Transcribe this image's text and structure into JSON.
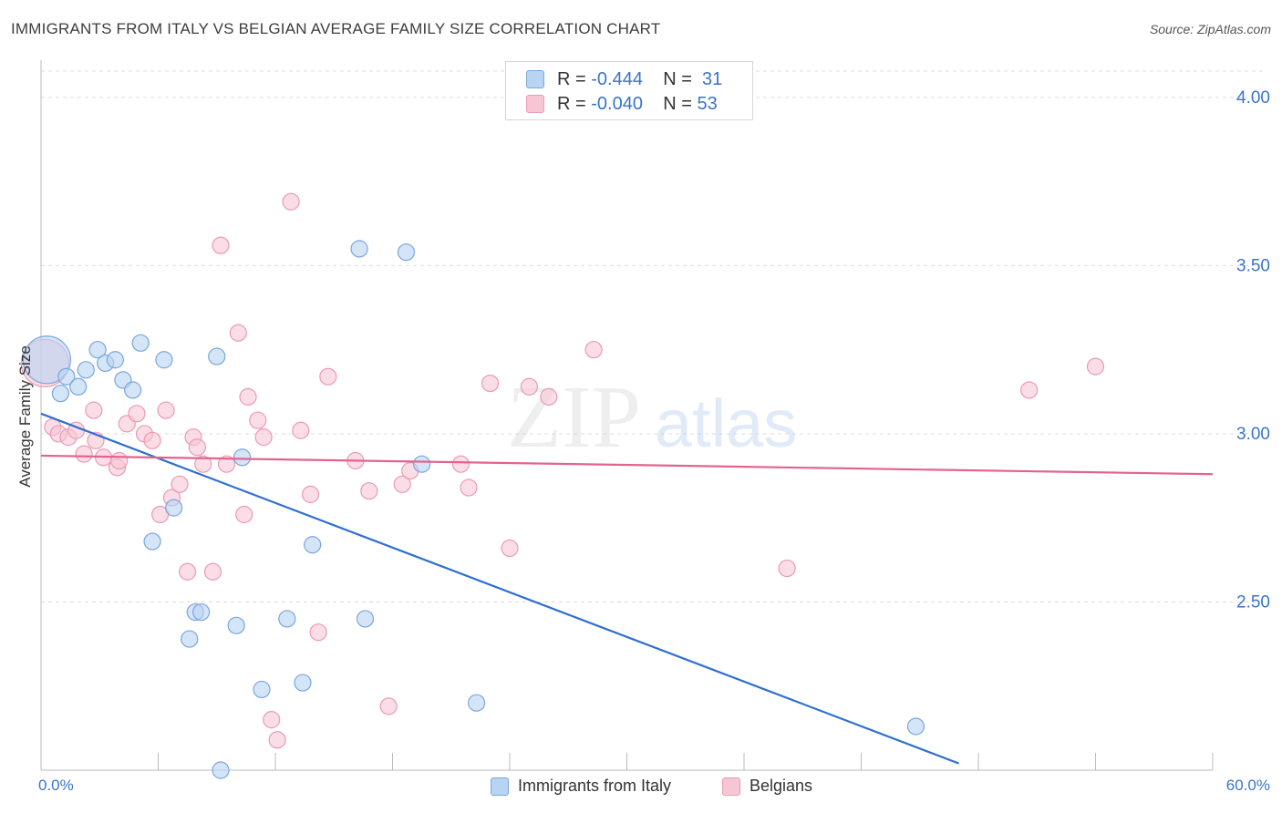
{
  "title": "IMMIGRANTS FROM ITALY VS BELGIAN AVERAGE FAMILY SIZE CORRELATION CHART",
  "source": "Source: ZipAtlas.com",
  "watermark": {
    "zip": "ZIP",
    "atlas": "atlas"
  },
  "legend_box": {
    "rows": [
      {
        "r_label": "R =",
        "r_value": "-0.444",
        "n_label": "N =",
        "n_value": "31"
      },
      {
        "r_label": "R =",
        "r_value": "-0.040",
        "n_label": "N =",
        "n_value": "53"
      }
    ]
  },
  "colors": {
    "blue_fill": "#b9d3f3",
    "blue_stroke": "#7aa6dd",
    "blue_line": "#2f6fcf",
    "pink_fill": "#f7c6d5",
    "pink_stroke": "#ec9ab3",
    "pink_line": "#e2638f",
    "axis_text": "#3a74c9",
    "grid": "#dcdcdc"
  },
  "chart_data": {
    "type": "scatter",
    "title": "IMMIGRANTS FROM ITALY VS BELGIAN AVERAGE FAMILY SIZE CORRELATION CHART",
    "xlabel": "",
    "ylabel": "Average Family Size",
    "xlim": [
      0,
      60
    ],
    "ylim": [
      2.0,
      4.1
    ],
    "x_tick_labels": [
      "0.0%",
      "60.0%"
    ],
    "y_ticks": [
      2.5,
      3.0,
      3.5,
      4.0
    ],
    "y_tick_labels": [
      "2.50",
      "3.00",
      "3.50",
      "4.00"
    ],
    "grid": true,
    "legend_position": "top-center",
    "series": [
      {
        "name": "Immigrants from Italy",
        "color": "#7aa6dd",
        "x": [
          0.3,
          1.0,
          1.3,
          1.9,
          2.3,
          2.9,
          3.3,
          3.8,
          4.2,
          4.7,
          5.1,
          5.7,
          6.3,
          6.8,
          7.6,
          7.9,
          8.2,
          9.0,
          9.2,
          10.0,
          10.3,
          11.3,
          12.6,
          13.4,
          13.9,
          16.3,
          16.6,
          18.7,
          19.5,
          22.3,
          44.8
        ],
        "y": [
          3.22,
          3.12,
          3.17,
          3.14,
          3.19,
          3.25,
          3.21,
          3.22,
          3.16,
          3.13,
          3.27,
          2.68,
          3.22,
          2.78,
          2.39,
          2.47,
          2.47,
          3.23,
          2.0,
          2.43,
          2.93,
          2.24,
          2.45,
          2.26,
          2.67,
          3.55,
          2.45,
          3.54,
          2.91,
          2.2,
          2.13
        ],
        "sizes": [
          26,
          9,
          9,
          9,
          9,
          9,
          9,
          9,
          9,
          9,
          9,
          9,
          9,
          9,
          9,
          9,
          9,
          9,
          9,
          9,
          9,
          9,
          9,
          9,
          9,
          9,
          9,
          9,
          9,
          9,
          9
        ]
      },
      {
        "name": "Belgians",
        "color": "#ec9ab3",
        "x": [
          0.2,
          0.6,
          0.9,
          1.4,
          1.8,
          2.2,
          2.7,
          2.8,
          3.2,
          3.9,
          4.0,
          4.4,
          4.9,
          5.3,
          5.7,
          6.1,
          6.4,
          6.7,
          7.1,
          7.5,
          7.8,
          8.0,
          8.3,
          8.8,
          9.2,
          9.5,
          10.1,
          10.4,
          10.6,
          11.1,
          11.4,
          11.8,
          12.1,
          12.8,
          13.3,
          13.8,
          14.2,
          14.7,
          16.1,
          16.8,
          17.8,
          18.5,
          18.9,
          21.5,
          21.9,
          23.0,
          24.0,
          25.0,
          26.0,
          28.3,
          38.2,
          50.6,
          54.0
        ],
        "y": [
          3.21,
          3.02,
          3.0,
          2.99,
          3.01,
          2.94,
          3.07,
          2.98,
          2.93,
          2.9,
          2.92,
          3.03,
          3.06,
          3.0,
          2.98,
          2.76,
          3.07,
          2.81,
          2.85,
          2.59,
          2.99,
          2.96,
          2.91,
          2.59,
          3.56,
          2.91,
          3.3,
          2.76,
          3.11,
          3.04,
          2.99,
          2.15,
          2.09,
          3.69,
          3.01,
          2.82,
          2.41,
          3.17,
          2.92,
          2.83,
          2.19,
          2.85,
          2.89,
          2.91,
          2.84,
          3.15,
          2.66,
          3.14,
          3.11,
          3.25,
          2.6,
          3.13,
          3.2
        ],
        "sizes": [
          26,
          9,
          9,
          9,
          9,
          9,
          9,
          9,
          9,
          9,
          9,
          9,
          9,
          9,
          9,
          9,
          9,
          9,
          9,
          9,
          9,
          9,
          9,
          9,
          9,
          9,
          9,
          9,
          9,
          9,
          9,
          9,
          9,
          9,
          9,
          9,
          9,
          9,
          9,
          9,
          9,
          9,
          9,
          9,
          9,
          9,
          9,
          9,
          9,
          9,
          9,
          9,
          9
        ]
      }
    ],
    "trend_lines": [
      {
        "series": "Immigrants from Italy",
        "x": [
          0,
          47
        ],
        "y": [
          3.06,
          2.02
        ]
      },
      {
        "series": "Belgians",
        "x": [
          0,
          60
        ],
        "y": [
          2.935,
          2.88
        ]
      }
    ]
  }
}
